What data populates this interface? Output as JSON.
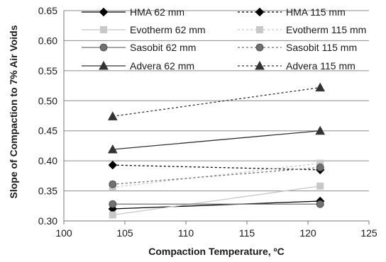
{
  "chart_data": {
    "type": "line",
    "title": "",
    "xlabel": "Compaction Temperature, ºC",
    "ylabel": "Slope of Compaction to 7% Air Voids",
    "xlim": [
      100,
      125
    ],
    "ylim": [
      0.3,
      0.65
    ],
    "x_ticks": [
      "100",
      "105",
      "110",
      "115",
      "120",
      "125"
    ],
    "y_ticks": [
      "0.30",
      "0.35",
      "0.40",
      "0.45",
      "0.50",
      "0.55",
      "0.60",
      "0.65"
    ],
    "grid": "horizontal",
    "legend_position": "top",
    "series": [
      {
        "name": "HMA 62 mm",
        "x": [
          104,
          121
        ],
        "y": [
          0.32,
          0.333
        ],
        "color": "#000000",
        "line": "solid",
        "marker": "diamond"
      },
      {
        "name": "HMA 115 mm",
        "x": [
          104,
          121
        ],
        "y": [
          0.393,
          0.385
        ],
        "color": "#000000",
        "line": "dashed",
        "marker": "diamond"
      },
      {
        "name": "Evotherm 62 mm",
        "x": [
          104,
          121
        ],
        "y": [
          0.31,
          0.358
        ],
        "color": "#c8c8c8",
        "line": "solid",
        "marker": "square"
      },
      {
        "name": "Evotherm 115 mm",
        "x": [
          104,
          121
        ],
        "y": [
          0.356,
          0.396
        ],
        "color": "#c8c8c8",
        "line": "dashed",
        "marker": "square"
      },
      {
        "name": "Sasobit 62 mm",
        "x": [
          104,
          121
        ],
        "y": [
          0.328,
          0.328
        ],
        "color": "#707070",
        "line": "solid",
        "marker": "circle"
      },
      {
        "name": "Sasobit 115 mm",
        "x": [
          104,
          121
        ],
        "y": [
          0.361,
          0.389
        ],
        "color": "#707070",
        "line": "dashed",
        "marker": "circle"
      },
      {
        "name": "Advera 62 mm",
        "x": [
          104,
          121
        ],
        "y": [
          0.419,
          0.45
        ],
        "color": "#333333",
        "line": "solid",
        "marker": "triangle"
      },
      {
        "name": "Advera 115 mm",
        "x": [
          104,
          121
        ],
        "y": [
          0.474,
          0.522
        ],
        "color": "#333333",
        "line": "dashed",
        "marker": "triangle"
      }
    ]
  }
}
